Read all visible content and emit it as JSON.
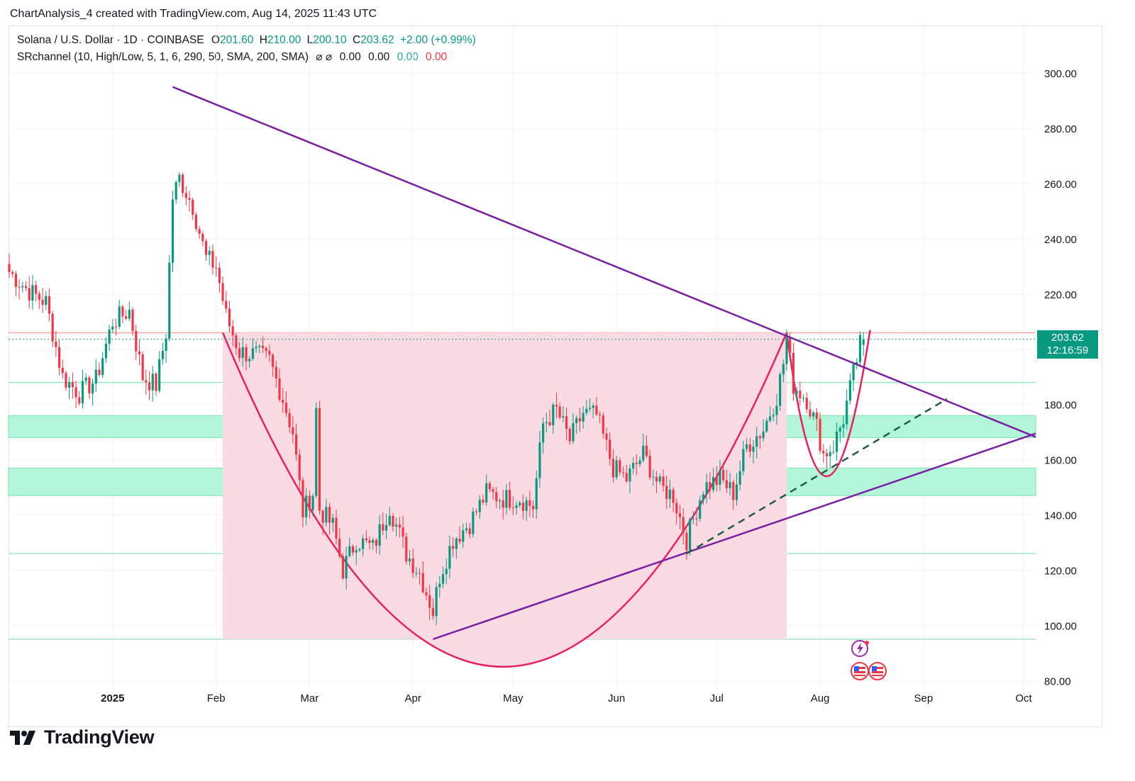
{
  "header": {
    "attribution": "ChartAnalysis_4 created with TradingView.com, Aug 14, 2025 11:43 UTC"
  },
  "legend": {
    "symbol": "Solana / U.S. Dollar · 1D · COINBASE",
    "open_label": "O",
    "open": "201.60",
    "high_label": "H",
    "high": "210.00",
    "low_label": "L",
    "low": "200.10",
    "close_label": "C",
    "close": "203.62",
    "change": "+2.00 (+0.99%)",
    "indicator": "SRchannel (10, High/Low, 5, 1, 6, 290, 50, SMA, 200, SMA)",
    "indicator_icons": "⌀ ⌀",
    "ind_v1": "0.00",
    "ind_v2": "0.00",
    "ind_v3": "0.00",
    "ind_v4": "0.00"
  },
  "price_badge": {
    "price": "203.62",
    "countdown": "12:16:59"
  },
  "brand": {
    "name": "TradingView"
  },
  "colors": {
    "up": "#089981",
    "down": "#f23645",
    "trendline": "#7b1fa2",
    "cup": "#e91e63",
    "zone_fill": "#b2f5d8",
    "cup_fill": "#fadbe3"
  },
  "chart_data": {
    "type": "candlestick",
    "title": "Solana / U.S. Dollar · 1D · COINBASE",
    "y_axis": {
      "ticks": [
        "300.00",
        "280.00",
        "260.00",
        "240.00",
        "220.00",
        "200.00",
        "180.00",
        "160.00",
        "140.00",
        "120.00",
        "100.00",
        "80.00"
      ],
      "range": [
        77,
        317
      ]
    },
    "x_axis": {
      "ticks": [
        "2025",
        "Feb",
        "Mar",
        "Apr",
        "May",
        "Jun",
        "Jul",
        "Aug",
        "Sep",
        "Oct"
      ]
    },
    "last_price": 203.62,
    "support_resistance_zones": [
      {
        "low": 168,
        "high": 176
      },
      {
        "low": 147,
        "high": 157
      }
    ],
    "horizontal_levels": [
      206,
      188,
      126,
      95
    ],
    "trendlines": [
      {
        "name": "descending resistance",
        "from": {
          "date": "2025-01-19",
          "price": 295
        },
        "to": {
          "date": "2025-10-01",
          "price": 170
        }
      },
      {
        "name": "ascending support",
        "from": {
          "date": "2025-04-07",
          "price": 95
        },
        "to": {
          "date": "2025-10-01",
          "price": 168
        }
      },
      {
        "name": "dashed support",
        "from": {
          "date": "2025-06-22",
          "price": 126
        },
        "to": {
          "date": "2025-09-08",
          "price": 182
        }
      }
    ],
    "patterns": [
      {
        "name": "cup",
        "start": {
          "date": "2025-02-03",
          "price": 206
        },
        "bottom": {
          "date": "2025-04-28",
          "price": 85
        },
        "end": {
          "date": "2025-07-22",
          "price": 206
        }
      },
      {
        "name": "handle",
        "start": {
          "date": "2025-07-22",
          "price": 206
        },
        "bottom": {
          "date": "2025-08-03",
          "price": 154
        },
        "end": {
          "date": "2025-08-16",
          "price": 207
        }
      }
    ],
    "series": [
      {
        "name": "SOL/USD",
        "close_anchors": [
          [
            "2024-12-01",
            228
          ],
          [
            "2024-12-07",
            221
          ],
          [
            "2024-12-12",
            217
          ],
          [
            "2024-12-17",
            190
          ],
          [
            "2024-12-22",
            184
          ],
          [
            "2024-12-27",
            189
          ],
          [
            "2025-01-01",
            210
          ],
          [
            "2025-01-06",
            214
          ],
          [
            "2025-01-10",
            190
          ],
          [
            "2025-01-14",
            187
          ],
          [
            "2025-01-17",
            206
          ],
          [
            "2025-01-19",
            255
          ],
          [
            "2025-01-21",
            262
          ],
          [
            "2025-01-25",
            252
          ],
          [
            "2025-01-29",
            233
          ],
          [
            "2025-02-01",
            230
          ],
          [
            "2025-02-04",
            212
          ],
          [
            "2025-02-08",
            199
          ],
          [
            "2025-02-13",
            198
          ],
          [
            "2025-02-17",
            196
          ],
          [
            "2025-02-21",
            182
          ],
          [
            "2025-02-24",
            170
          ],
          [
            "2025-02-27",
            141
          ],
          [
            "2025-03-02",
            148
          ],
          [
            "2025-03-03",
            178
          ],
          [
            "2025-03-04",
            142
          ],
          [
            "2025-03-08",
            136
          ],
          [
            "2025-03-11",
            120
          ],
          [
            "2025-03-15",
            131
          ],
          [
            "2025-03-20",
            128
          ],
          [
            "2025-03-25",
            143
          ],
          [
            "2025-03-30",
            126
          ],
          [
            "2025-04-03",
            119
          ],
          [
            "2025-04-07",
            105
          ],
          [
            "2025-04-09",
            118
          ],
          [
            "2025-04-13",
            131
          ],
          [
            "2025-04-18",
            137
          ],
          [
            "2025-04-23",
            148
          ],
          [
            "2025-04-28",
            146
          ],
          [
            "2025-05-03",
            146
          ],
          [
            "2025-05-07",
            143
          ],
          [
            "2025-05-10",
            173
          ],
          [
            "2025-05-14",
            178
          ],
          [
            "2025-05-18",
            167
          ],
          [
            "2025-05-22",
            177
          ],
          [
            "2025-05-26",
            176
          ],
          [
            "2025-05-31",
            157
          ],
          [
            "2025-06-04",
            153
          ],
          [
            "2025-06-09",
            162
          ],
          [
            "2025-06-14",
            150
          ],
          [
            "2025-06-18",
            147
          ],
          [
            "2025-06-22",
            131
          ],
          [
            "2025-06-27",
            150
          ],
          [
            "2025-07-02",
            153
          ],
          [
            "2025-07-06",
            148
          ],
          [
            "2025-07-10",
            165
          ],
          [
            "2025-07-15",
            171
          ],
          [
            "2025-07-19",
            183
          ],
          [
            "2025-07-21",
            195
          ],
          [
            "2025-07-22",
            204
          ],
          [
            "2025-07-24",
            187
          ],
          [
            "2025-07-28",
            182
          ],
          [
            "2025-07-31",
            172
          ],
          [
            "2025-08-02",
            162
          ],
          [
            "2025-08-05",
            165
          ],
          [
            "2025-08-08",
            175
          ],
          [
            "2025-08-11",
            191
          ],
          [
            "2025-08-13",
            201.6
          ],
          [
            "2025-08-14",
            203.62
          ]
        ]
      }
    ]
  }
}
